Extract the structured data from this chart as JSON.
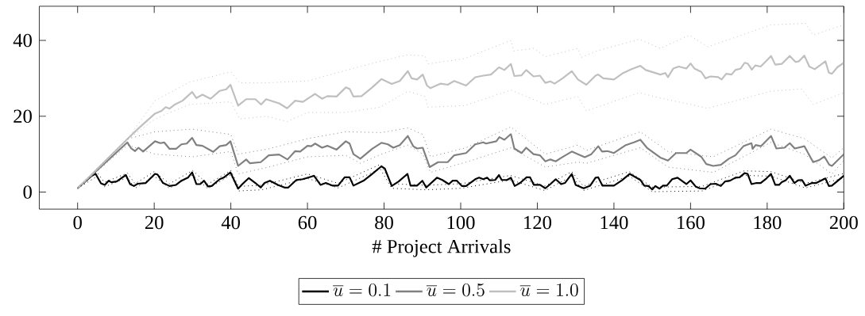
{
  "chart_data": {
    "type": "line",
    "xlabel": "# Project Arrivals",
    "xlim": [
      -10,
      200
    ],
    "ylim": [
      -4.5,
      49
    ],
    "xticks": [
      0,
      20,
      40,
      60,
      80,
      100,
      120,
      140,
      160,
      180,
      200
    ],
    "yticks": [
      0,
      20,
      40
    ],
    "legend": "bottom",
    "grid": false,
    "series": [
      {
        "name": "\\overline{u} = 0.1",
        "color": "#000000",
        "x": [
          0,
          3.7,
          4.7,
          6.1,
          7.1,
          8.1,
          8.8,
          10.2,
          12.6,
          13.7,
          14.7,
          15.7,
          17.8,
          20.2,
          20.9,
          22.3,
          24,
          25.7,
          27.1,
          28.8,
          29.9,
          31,
          32,
          33,
          34,
          35,
          37.1,
          38.1,
          39.9,
          41.9,
          43,
          44.7,
          46.4,
          47.8,
          48.8,
          50.2,
          52.3,
          54,
          55,
          57.1,
          58.8,
          61.7,
          63.4,
          64.8,
          66.6,
          68,
          69.7,
          71,
          72,
          74.8,
          76.9,
          79.3,
          80.2,
          82,
          83.8,
          86.1,
          86.9,
          88.6,
          90,
          91,
          93.8,
          95.2,
          96.9,
          97.9,
          99,
          100.3,
          101.4,
          103.8,
          104.8,
          105.9,
          106.9,
          107.6,
          109,
          110,
          110.7,
          112.1,
          113.1,
          114.1,
          115.5,
          117.2,
          118.1,
          119.1,
          120.7,
          122.1,
          123.4,
          124.8,
          126.2,
          127.2,
          129,
          130,
          132.1,
          133.8,
          135.2,
          135.9,
          137,
          140,
          142.1,
          144.1,
          146.9,
          147.9,
          149,
          150,
          150.8,
          151.9,
          152.8,
          153.8,
          155.2,
          156.6,
          158.9,
          160,
          161.4,
          162.4,
          163.8,
          165.2,
          166.6,
          167.9,
          169,
          170.3,
          171.7,
          172.8,
          174.1,
          174.9,
          175.9,
          177.2,
          178.3,
          179.8,
          181,
          182.1,
          183.1,
          183.8,
          184.8,
          185.9,
          187.1,
          188.1,
          189.1,
          190,
          191.7,
          192.8,
          195.2,
          196.1,
          196.9,
          200
        ],
        "values": [
          1,
          4.3,
          4.8,
          2.3,
          1.9,
          3,
          2.6,
          2.8,
          4.5,
          2.1,
          1.6,
          2.2,
          2.4,
          4.8,
          4.6,
          2.4,
          1.6,
          1.9,
          3,
          3.8,
          5.2,
          2.1,
          2.1,
          3,
          1.5,
          1.6,
          3.4,
          3.8,
          5.2,
          0.9,
          2.1,
          3.7,
          2.4,
          1.2,
          2.4,
          3,
          1.9,
          1.2,
          1.2,
          3.2,
          3.4,
          4.3,
          1.9,
          2.4,
          1.7,
          1.7,
          3.9,
          3.9,
          1.7,
          3.1,
          4.8,
          6.8,
          6.2,
          1.6,
          2.8,
          4.8,
          1.7,
          1.7,
          3,
          1.2,
          3.8,
          3.2,
          2.1,
          3,
          3,
          1.6,
          1.6,
          3.4,
          3.8,
          3.4,
          3.8,
          3.1,
          3.2,
          4.5,
          3.2,
          3.2,
          3.8,
          1.6,
          2.4,
          3.9,
          3.9,
          1.9,
          1.9,
          1,
          2.1,
          3.4,
          2.1,
          2.4,
          4.8,
          1.9,
          1,
          1.7,
          3.8,
          3.9,
          1.7,
          1.7,
          3.1,
          4.8,
          3.2,
          1.7,
          1.6,
          0.7,
          1.6,
          0.9,
          1.7,
          1.7,
          3.4,
          3.8,
          2.1,
          3.1,
          1.4,
          1,
          0.9,
          2.1,
          2.2,
          1.6,
          2.8,
          3,
          3.8,
          3.9,
          5,
          4.8,
          2.1,
          2.4,
          2.4,
          3.6,
          4.8,
          1.9,
          1.9,
          2.6,
          3.1,
          4.3,
          2.4,
          3.1,
          3.2,
          1.7,
          2.4,
          2.4,
          3.6,
          1.6,
          1.7,
          4.3
        ]
      },
      {
        "name": "\\overline{u} = 0.5",
        "color": "#808080",
        "x": [
          0,
          13,
          14,
          15,
          15.9,
          17.1,
          20.2,
          21.6,
          22.6,
          24,
          25.7,
          27.1,
          28.5,
          29.9,
          31,
          32.6,
          35.4,
          37.1,
          38.8,
          39.9,
          41.9,
          44,
          45,
          47.8,
          49.9,
          52.6,
          54.8,
          56.8,
          58.1,
          60,
          61,
          62,
          63.8,
          65.2,
          67.6,
          70,
          71,
          72,
          73.8,
          76.9,
          79.3,
          81,
          82.4,
          84.1,
          86.2,
          87.6,
          88.6,
          90.1,
          91.9,
          94.1,
          96.6,
          98.3,
          101.4,
          103.8,
          105.9,
          106.6,
          109.3,
          110.1,
          111.4,
          113.1,
          114,
          115.9,
          117.1,
          119,
          120.7,
          122.1,
          123.4,
          124.8,
          126.2,
          129,
          130.6,
          132.4,
          134.1,
          135.9,
          136.9,
          138.3,
          140,
          143.1,
          145.2,
          146.9,
          148.6,
          152.1,
          154.1,
          156.2,
          158.9,
          160,
          162.8,
          164.1,
          165.9,
          167.9,
          170,
          171.7,
          173.8,
          175.9,
          176.2,
          177,
          178.4,
          181,
          182.4,
          184.5,
          185.9,
          187.2,
          189.7,
          192,
          193.5,
          194.9,
          196.2,
          196.9,
          200
        ],
        "values": [
          1,
          13.1,
          11.5,
          10.8,
          11.7,
          10.7,
          13.4,
          12.9,
          13.1,
          11.4,
          11.4,
          12.6,
          12.8,
          14.3,
          12.4,
          12.2,
          10.6,
          12.1,
          12.4,
          13.4,
          6.9,
          8.6,
          7.6,
          7.9,
          9.7,
          9.9,
          8.6,
          10.8,
          10.7,
          12.2,
          12.1,
          12.8,
          11.7,
          12.2,
          11.2,
          13.4,
          12.8,
          10,
          8.8,
          11.4,
          13,
          12.6,
          11.7,
          12.4,
          14.8,
          12.1,
          11.5,
          11.7,
          6.6,
          7.9,
          7.9,
          9.7,
          10.3,
          12.6,
          13.1,
          12.8,
          13.4,
          14.5,
          13.8,
          15.3,
          11.5,
          10.3,
          11.7,
          10,
          9.7,
          8.1,
          8.6,
          8.1,
          9,
          10.7,
          10,
          9.2,
          10,
          12.1,
          10.7,
          10.8,
          10.3,
          12.4,
          13.1,
          13.8,
          11.7,
          9.1,
          8.3,
          10.3,
          10.3,
          11.2,
          9.3,
          7.4,
          6.9,
          7.2,
          8.8,
          9.7,
          12.1,
          12.9,
          11.4,
          12.4,
          12.1,
          14.8,
          11.5,
          11.7,
          12.9,
          11.5,
          12.1,
          7.9,
          8.4,
          9.4,
          7.2,
          6.9,
          10
        ]
      },
      {
        "name": "\\overline{u} = 1.0",
        "color": "#bfbfbf",
        "x": [
          0,
          13,
          16,
          20.2,
          21.9,
          23,
          24,
          25.4,
          27.4,
          29.9,
          31,
          32.6,
          34.7,
          37.1,
          38.8,
          39.9,
          41.9,
          44,
          46.4,
          47.9,
          49.2,
          52.6,
          54.7,
          56.8,
          58.8,
          60.3,
          62,
          63.8,
          65.2,
          67.6,
          70,
          71,
          72,
          74.1,
          76.9,
          79.3,
          82,
          84.1,
          86.2,
          87.2,
          88.6,
          90.1,
          91.2,
          92.1,
          94.8,
          96.6,
          98.3,
          101.4,
          103.8,
          105.9,
          107.9,
          110,
          111.4,
          113.1,
          114,
          115.9,
          117.1,
          119,
          120.7,
          122.1,
          123.4,
          124.5,
          126.6,
          129,
          130.6,
          132.8,
          135.2,
          135.9,
          137.2,
          140,
          142.4,
          144.5,
          146.9,
          148.3,
          152.1,
          153.4,
          154.1,
          155.5,
          156.9,
          158.9,
          160,
          161,
          162.8,
          163.9,
          165.2,
          167.2,
          168.1,
          169.3,
          170.7,
          171.7,
          173.1,
          174.1,
          174.9,
          176,
          176.9,
          178.3,
          179.7,
          181,
          182.1,
          183.8,
          185.9,
          187.4,
          188.3,
          189.7,
          191,
          192.4,
          195.2,
          196.1,
          196.9,
          198.3,
          200
        ],
        "values": [
          1,
          14,
          16.9,
          20.7,
          21.4,
          22.4,
          22,
          23.1,
          24.1,
          26.4,
          24.8,
          25.7,
          24.6,
          26.7,
          27.1,
          28.3,
          22.8,
          24.5,
          24.5,
          23.1,
          24.5,
          23.4,
          22.1,
          24.1,
          23.8,
          24.8,
          25.9,
          24.6,
          25.3,
          25.2,
          27.6,
          27.2,
          25.2,
          25.3,
          27.6,
          29.8,
          28.5,
          29.3,
          31.9,
          30,
          29.7,
          31,
          28.1,
          27.4,
          28.6,
          28.3,
          29.3,
          28.1,
          30.3,
          30.7,
          31,
          32.9,
          32.2,
          33.8,
          30.6,
          30.8,
          32.2,
          30.5,
          30.7,
          28.8,
          29.2,
          28.6,
          30,
          31.9,
          29.7,
          28.3,
          30.7,
          31,
          30,
          29.7,
          31.4,
          32.4,
          33.3,
          32.2,
          31,
          31.4,
          30.3,
          32.6,
          33.1,
          32.6,
          33.9,
          32.6,
          31.7,
          30,
          30.5,
          30.3,
          29.7,
          31.2,
          31,
          32.2,
          32.6,
          34.1,
          33.9,
          32.3,
          33.4,
          33.1,
          34.5,
          35.9,
          33.6,
          33.8,
          35.9,
          34.3,
          34.5,
          36,
          33.1,
          32.4,
          34.5,
          31.5,
          31.2,
          32.9,
          34.1
        ]
      },
      {
        "color": "#000000",
        "line_style": "dotted",
        "x": [
          0,
          5,
          7,
          13,
          15,
          20,
          24,
          30,
          34,
          40,
          42,
          48,
          60,
          68,
          79,
          82,
          91,
          100,
          113,
          122,
          129,
          132,
          144,
          150,
          163,
          174,
          181,
          190,
          200
        ],
        "values": [
          1,
          5.3,
          2.6,
          5,
          2.2,
          5.4,
          2.2,
          5.7,
          2.1,
          5.7,
          1.5,
          1.8,
          4.8,
          2.3,
          7.3,
          2.2,
          1.8,
          2.2,
          4.4,
          1.6,
          5.4,
          1.6,
          5.4,
          1.3,
          1.5,
          5.6,
          5.4,
          2.3,
          4.9
        ]
      },
      {
        "color": "#000000",
        "line_style": "dotted",
        "x": [
          0,
          5,
          7,
          13,
          15,
          20,
          24,
          30,
          34,
          40,
          42,
          48,
          60,
          68,
          79,
          82,
          91,
          100,
          113,
          122,
          129,
          132,
          144,
          150,
          163,
          174,
          181,
          190,
          200
        ],
        "values": [
          1,
          4.1,
          1.4,
          3.8,
          1,
          4.2,
          1,
          4.5,
          0.9,
          4.5,
          0.3,
          0.6,
          3.6,
          1.1,
          6.1,
          1,
          0.6,
          1,
          3.2,
          0.4,
          4.2,
          0.4,
          4.2,
          0.1,
          0.3,
          4.4,
          4.2,
          1.1,
          3.7
        ]
      },
      {
        "color": "#808080",
        "line_style": "dotted",
        "x": [
          0,
          13,
          20.2,
          29.9,
          40,
          41.9,
          49.9,
          60,
          70,
          79.3,
          86.2,
          90.1,
          92.1,
          101.4,
          113.1,
          122.1,
          130.6,
          132.8,
          146.9,
          154.1,
          165.9,
          181,
          189.7,
          196.9,
          200
        ],
        "values": [
          1,
          14,
          15.9,
          16.6,
          15.2,
          10,
          11.4,
          14.1,
          15.9,
          15.7,
          16.9,
          15.2,
          9.3,
          11.7,
          17.2,
          10,
          12.4,
          11,
          15.9,
          10.7,
          9.3,
          16.6,
          14.1,
          9,
          11.7
        ]
      },
      {
        "color": "#808080",
        "line_style": "dotted",
        "x": [
          0,
          13,
          20.2,
          29.9,
          40,
          41.9,
          49.9,
          60,
          70,
          73.8,
          79.3,
          86.2,
          90.1,
          92.1,
          101.4,
          113.1,
          122.1,
          130.6,
          132.8,
          146.9,
          154.1,
          165.9,
          181,
          189.7,
          196.9,
          200
        ],
        "values": [
          1,
          12.4,
          10,
          9.3,
          10.7,
          4.8,
          6.6,
          9.3,
          9.7,
          7.6,
          10,
          12.4,
          10,
          5.2,
          7.9,
          11.7,
          6.6,
          7.9,
          7.6,
          11.7,
          6.6,
          5.2,
          13.1,
          10,
          4.8,
          8.3
        ]
      },
      {
        "color": "#bfbfbf",
        "line_style": "dotted",
        "x": [
          0,
          13,
          20.2,
          29.2,
          40,
          42.3,
          49.2,
          60,
          70,
          79,
          86.2,
          90.7,
          91.4,
          101,
          113.1,
          113.8,
          119,
          122.1,
          130.6,
          131.4,
          135.5,
          146.6,
          152.1,
          159.7,
          164.5,
          181,
          190,
          192,
          200
        ],
        "values": [
          1,
          14,
          24.1,
          29,
          31.7,
          28.8,
          28.8,
          29.3,
          32.1,
          34.5,
          36.2,
          35.9,
          33.8,
          35.2,
          40,
          37.2,
          37.9,
          35.7,
          37.9,
          35.5,
          37.2,
          40.3,
          37.9,
          41.4,
          38.3,
          44.1,
          44.5,
          41.4,
          44.1
        ]
      },
      {
        "color": "#bfbfbf",
        "line_style": "dotted",
        "x": [
          0,
          13,
          20.2,
          29.2,
          40,
          42.3,
          49.2,
          54.7,
          60,
          70,
          79,
          86.2,
          90.7,
          91.4,
          101,
          113.1,
          122.1,
          130.6,
          132.8,
          146.6,
          152.1,
          164.5,
          181,
          189,
          192,
          200
        ],
        "values": [
          1,
          13.8,
          19.3,
          23.1,
          23.8,
          19.3,
          20,
          18.6,
          21,
          21,
          22.4,
          26.6,
          25.2,
          22.4,
          22.8,
          26.9,
          23.1,
          25.2,
          21.4,
          26.2,
          24.8,
          22.1,
          26.6,
          27.2,
          23.1,
          26.2
        ]
      }
    ]
  }
}
